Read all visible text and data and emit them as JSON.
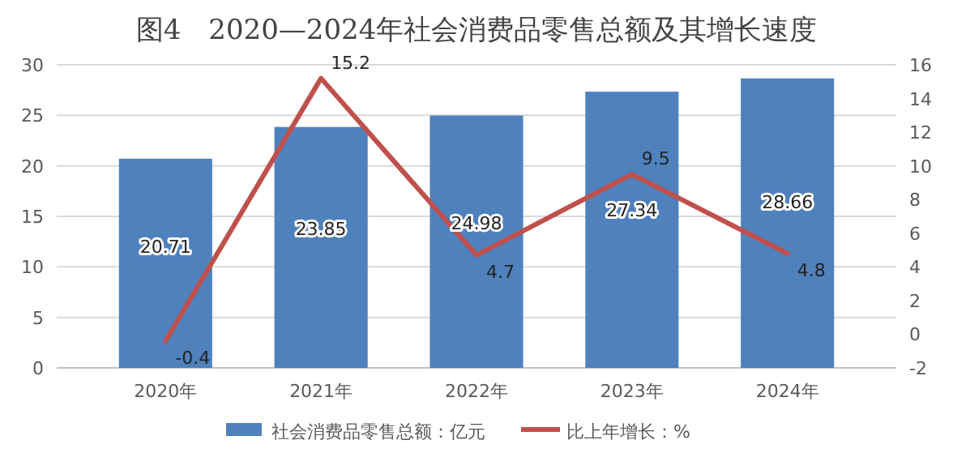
{
  "chart_data": {
    "type": "bar",
    "title": "图4　2020—2024年社会消费品零售总额及其增长速度",
    "categories": [
      "2020年",
      "2021年",
      "2022年",
      "2023年",
      "2024年"
    ],
    "series": [
      {
        "name": "社会消费品零售总额：亿元",
        "color": "#4f81bd",
        "values": [
          20.71,
          23.85,
          24.98,
          27.34,
          28.66
        ]
      },
      {
        "name": "比上年增长：%",
        "type": "line",
        "axis": "y2",
        "color": "#c0504d",
        "values": [
          -0.4,
          15.2,
          4.7,
          9.5,
          4.8
        ]
      }
    ],
    "ylim": [
      0,
      30
    ],
    "yticks": [
      0,
      5,
      10,
      15,
      20,
      25,
      30
    ],
    "y2lim": [
      -2,
      16
    ],
    "y2ticks": [
      -2,
      0,
      2,
      4,
      6,
      8,
      10,
      12,
      14,
      16
    ],
    "grid": "y",
    "legend": "bottom",
    "data_labels": true,
    "marker": "none",
    "line_style": "solid"
  }
}
